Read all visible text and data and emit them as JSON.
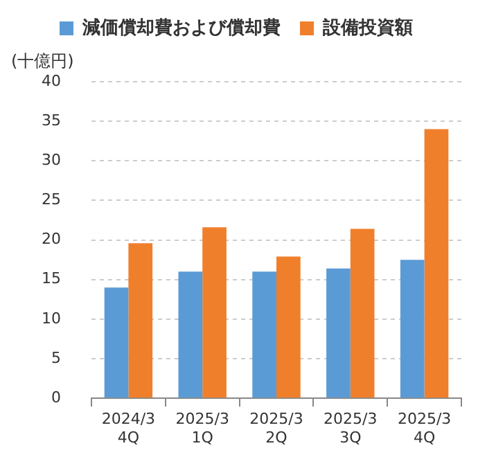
{
  "chart_data": {
    "type": "bar",
    "ylabel": "(十億円)",
    "categories": [
      "2024/3\n4Q",
      "2025/3\n1Q",
      "2025/3\n2Q",
      "2025/3\n3Q",
      "2025/3\n4Q"
    ],
    "series": [
      {
        "name": "減価償却費および償却費",
        "color": "#5b9bd5",
        "values": [
          14.0,
          16.0,
          16.0,
          16.4,
          17.5
        ]
      },
      {
        "name": "設備投資額",
        "color": "#f07f2b",
        "values": [
          19.6,
          21.6,
          17.9,
          21.4,
          34.0
        ]
      }
    ],
    "ylim": [
      0,
      40
    ],
    "yticks": [
      0,
      5,
      10,
      15,
      20,
      25,
      30,
      35,
      40
    ],
    "grid": "y",
    "legend": "top"
  }
}
